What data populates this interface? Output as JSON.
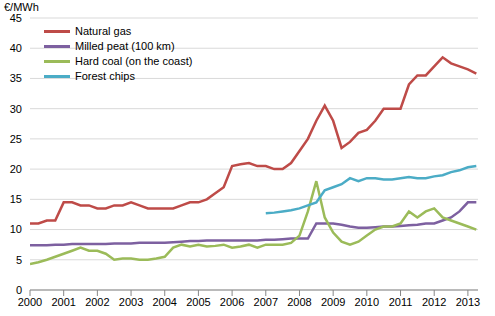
{
  "chart_data": {
    "type": "line",
    "y_label": "€/MWh",
    "x": [
      2000,
      2000.25,
      2000.5,
      2000.75,
      2001,
      2001.25,
      2001.5,
      2001.75,
      2002,
      2002.25,
      2002.5,
      2002.75,
      2003,
      2003.25,
      2003.5,
      2003.75,
      2004,
      2004.25,
      2004.5,
      2004.75,
      2005,
      2005.25,
      2005.5,
      2005.75,
      2006,
      2006.25,
      2006.5,
      2006.75,
      2007,
      2007.25,
      2007.5,
      2007.75,
      2008,
      2008.25,
      2008.5,
      2008.75,
      2009,
      2009.25,
      2009.5,
      2009.75,
      2010,
      2010.25,
      2010.5,
      2010.75,
      2011,
      2011.25,
      2011.5,
      2011.75,
      2012,
      2012.25,
      2012.5,
      2012.75,
      2013,
      2013.25
    ],
    "series": [
      {
        "name": "Natural gas",
        "color": "#be4b48",
        "values": [
          11,
          11,
          11.5,
          11.5,
          14.5,
          14.5,
          14,
          14,
          13.5,
          13.5,
          14,
          14,
          14.5,
          14,
          13.5,
          13.5,
          13.5,
          13.5,
          14,
          14.5,
          14.5,
          15,
          16,
          17,
          20.5,
          20.8,
          21,
          20.5,
          20.5,
          20,
          20,
          21,
          23,
          25,
          28,
          30.5,
          28,
          23.5,
          24.5,
          26,
          26.5,
          28,
          30,
          30,
          30,
          34,
          35.5,
          35.5,
          37,
          38.5,
          37.5,
          37,
          36.5,
          35.8
        ]
      },
      {
        "name": "Milled peat (100 km)",
        "color": "#7d60a0",
        "values": [
          7.4,
          7.4,
          7.4,
          7.5,
          7.5,
          7.6,
          7.6,
          7.6,
          7.6,
          7.6,
          7.7,
          7.7,
          7.7,
          7.8,
          7.8,
          7.8,
          7.8,
          7.9,
          8,
          8.1,
          8.1,
          8.2,
          8.2,
          8.2,
          8.2,
          8.2,
          8.2,
          8.2,
          8.3,
          8.3,
          8.4,
          8.5,
          8.5,
          8.5,
          11,
          11,
          11,
          10.8,
          10.5,
          10.3,
          10.3,
          10.4,
          10.5,
          10.5,
          10.6,
          10.7,
          10.8,
          11,
          11,
          11.5,
          12,
          13,
          14.5,
          14.5
        ]
      },
      {
        "name": "Hard coal (on the coast)",
        "color": "#9bbb59",
        "values": [
          4.3,
          4.6,
          5,
          5.5,
          6,
          6.5,
          7,
          6.5,
          6.5,
          6,
          5,
          5.2,
          5.2,
          5,
          5,
          5.2,
          5.5,
          7,
          7.5,
          7.2,
          7.5,
          7.2,
          7.3,
          7.5,
          7,
          7.2,
          7.5,
          7,
          7.5,
          7.5,
          7.5,
          7.8,
          9,
          13,
          18,
          12,
          9.5,
          8,
          7.5,
          8,
          9,
          10,
          10.5,
          10.5,
          11,
          13,
          12,
          13,
          13.5,
          12,
          11.5,
          11,
          10.5,
          10
        ]
      },
      {
        "name": "Forest chips",
        "color": "#4bacc6",
        "values": [
          null,
          null,
          null,
          null,
          null,
          null,
          null,
          null,
          null,
          null,
          null,
          null,
          null,
          null,
          null,
          null,
          null,
          null,
          null,
          null,
          null,
          null,
          null,
          null,
          null,
          null,
          null,
          null,
          12.7,
          12.8,
          13,
          13.2,
          13.5,
          14,
          14.5,
          16.5,
          17,
          17.5,
          18.5,
          18,
          18.5,
          18.5,
          18.3,
          18.3,
          18.5,
          18.7,
          18.5,
          18.5,
          18.8,
          19,
          19.5,
          19.8,
          20.3,
          20.5
        ]
      }
    ],
    "xlim": [
      2000,
      2013.3
    ],
    "xticks": [
      2000,
      2001,
      2002,
      2003,
      2004,
      2005,
      2006,
      2007,
      2008,
      2009,
      2010,
      2011,
      2012,
      2013
    ],
    "ylim": [
      0,
      45
    ],
    "yticks": [
      0,
      5,
      10,
      15,
      20,
      25,
      30,
      35,
      40,
      45
    ],
    "grid": true,
    "legend": "upper left"
  }
}
